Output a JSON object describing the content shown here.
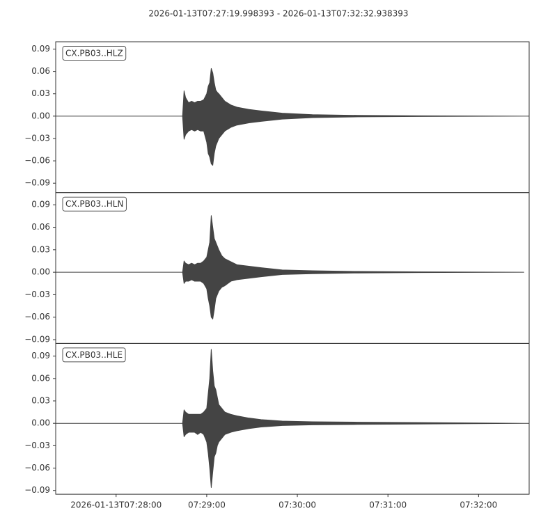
{
  "chart_data": {
    "type": "line",
    "title": "2026-01-13T07:27:19.998393  -  2026-01-13T07:32:32.938393",
    "x": [
      "2026-01-13T07:27:20",
      "2026-01-13T07:28:44",
      "2026-01-13T07:28:45",
      "2026-01-13T07:28:46",
      "2026-01-13T07:28:48",
      "2026-01-13T07:28:50",
      "2026-01-13T07:28:52",
      "2026-01-13T07:28:54",
      "2026-01-13T07:28:56",
      "2026-01-13T07:28:58",
      "2026-01-13T07:29:00",
      "2026-01-13T07:29:01",
      "2026-01-13T07:29:02",
      "2026-01-13T07:29:03",
      "2026-01-13T07:29:04",
      "2026-01-13T07:29:05",
      "2026-01-13T07:29:06",
      "2026-01-13T07:29:07",
      "2026-01-13T07:29:08",
      "2026-01-13T07:29:10",
      "2026-01-13T07:29:12",
      "2026-01-13T07:29:16",
      "2026-01-13T07:29:20",
      "2026-01-13T07:29:28",
      "2026-01-13T07:29:36",
      "2026-01-13T07:29:50",
      "2026-01-13T07:30:10",
      "2026-01-13T07:30:40",
      "2026-01-13T07:31:20",
      "2026-01-13T07:32:30",
      "2026-01-13T07:32:33.5"
    ],
    "xlim": [
      "2026-01-13T07:27:20",
      "2026-01-13T07:32:33.5"
    ],
    "xticks": [
      {
        "value": "2026-01-13T07:28:00",
        "label": "2026-01-13T07:28:00"
      },
      {
        "value": "2026-01-13T07:29:00",
        "label": "07:29:00"
      },
      {
        "value": "2026-01-13T07:30:00",
        "label": "07:30:00"
      },
      {
        "value": "2026-01-13T07:31:00",
        "label": "07:31:00"
      },
      {
        "value": "2026-01-13T07:32:00",
        "label": "07:32:00"
      }
    ],
    "yticks": [
      {
        "value": -0.09,
        "label": "−0.09"
      },
      {
        "value": -0.06,
        "label": "−0.06"
      },
      {
        "value": -0.03,
        "label": "−0.03"
      },
      {
        "value": 0,
        "label": "0.00"
      },
      0.03,
      0.06,
      0.09
    ],
    "series": [
      {
        "name": "CX.PB03..HLZ",
        "color": "#444444",
        "ylim": [
          -0.1026,
          0.0998
        ],
        "values": [
          0,
          0,
          0.034,
          0.025,
          0.018,
          0.02,
          0.018,
          0.02,
          0.02,
          0.022,
          0.03,
          0.04,
          0.045,
          0.064,
          0.058,
          0.045,
          0.035,
          0.032,
          0.03,
          0.025,
          0.02,
          0.015,
          0.012,
          0.009,
          0.007,
          0.004,
          0.002,
          0.001,
          0.0005,
          0,
          0
        ],
        "lower": [
          0,
          0,
          -0.031,
          -0.025,
          -0.02,
          -0.018,
          -0.02,
          -0.018,
          -0.02,
          -0.02,
          -0.035,
          -0.05,
          -0.055,
          -0.064,
          -0.066,
          -0.05,
          -0.04,
          -0.035,
          -0.03,
          -0.025,
          -0.02,
          -0.015,
          -0.012,
          -0.009,
          -0.007,
          -0.004,
          -0.002,
          -0.001,
          -0.0005,
          0,
          0
        ]
      },
      {
        "name": "CX.PB03..HLN",
        "color": "#444444",
        "ylim": [
          -0.095,
          0.1063
        ],
        "values": [
          0,
          0,
          0.015,
          0.012,
          0.01,
          0.012,
          0.01,
          0.012,
          0.012,
          0.015,
          0.02,
          0.03,
          0.04,
          0.0756,
          0.06,
          0.045,
          0.04,
          0.035,
          0.03,
          0.022,
          0.018,
          0.014,
          0.01,
          0.008,
          0.006,
          0.003,
          0.002,
          0.001,
          0.0005,
          0,
          null
        ],
        "lower": [
          0,
          0,
          -0.015,
          -0.012,
          -0.012,
          -0.01,
          -0.012,
          -0.012,
          -0.012,
          -0.015,
          -0.022,
          -0.035,
          -0.045,
          -0.06,
          -0.0625,
          -0.05,
          -0.035,
          -0.03,
          -0.025,
          -0.02,
          -0.018,
          -0.012,
          -0.01,
          -0.008,
          -0.006,
          -0.003,
          -0.002,
          -0.001,
          -0.0005,
          0,
          null
        ]
      },
      {
        "name": "CX.PB03..HLE",
        "color": "#444444",
        "ylim": [
          -0.095,
          0.107
        ],
        "values": [
          0,
          0,
          0.018,
          0.015,
          0.012,
          0.012,
          0.012,
          0.012,
          0.012,
          0.015,
          0.02,
          0.04,
          0.06,
          0.099,
          0.07,
          0.05,
          0.045,
          0.035,
          0.025,
          0.02,
          0.015,
          0.012,
          0.01,
          0.007,
          0.005,
          0.003,
          0.002,
          0.0015,
          0.001,
          0,
          0
        ],
        "lower": [
          0,
          0,
          -0.018,
          -0.015,
          -0.012,
          -0.012,
          -0.012,
          -0.015,
          -0.012,
          -0.015,
          -0.025,
          -0.04,
          -0.06,
          -0.086,
          -0.065,
          -0.045,
          -0.04,
          -0.03,
          -0.025,
          -0.02,
          -0.015,
          -0.012,
          -0.01,
          -0.007,
          -0.005,
          -0.003,
          -0.002,
          -0.0015,
          -0.001,
          0,
          0
        ]
      }
    ]
  }
}
